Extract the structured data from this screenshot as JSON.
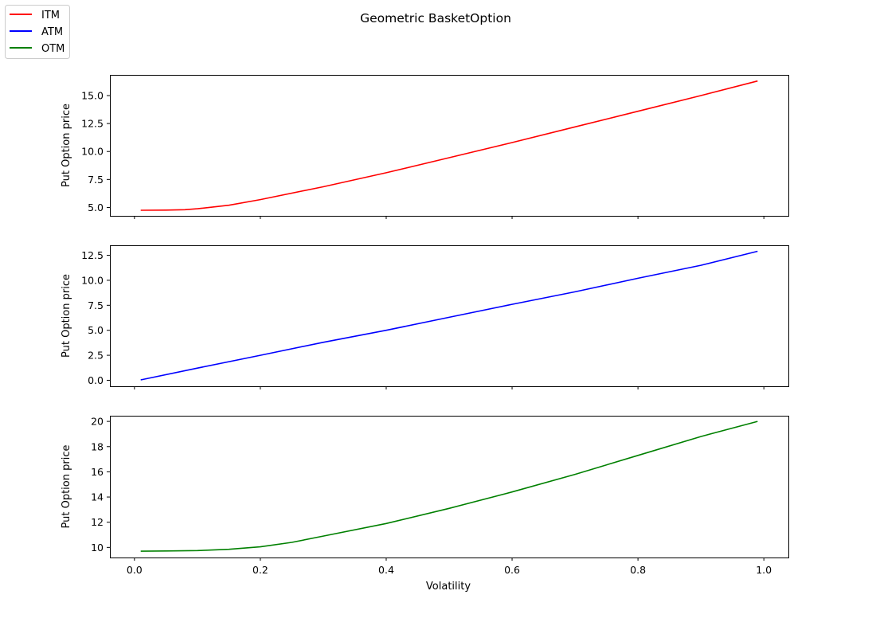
{
  "title": "Geometric BasketOption",
  "legend": {
    "placement": "top-left",
    "entries": [
      {
        "label": "ITM",
        "color": "#ff0000"
      },
      {
        "label": "ATM",
        "color": "#0000ff"
      },
      {
        "label": "OTM",
        "color": "#008000"
      }
    ]
  },
  "chart_data": [
    {
      "type": "line",
      "series": [
        {
          "name": "ITM",
          "color": "#ff0000",
          "x": [
            0.01,
            0.05,
            0.08,
            0.1,
            0.15,
            0.2,
            0.3,
            0.4,
            0.5,
            0.6,
            0.7,
            0.8,
            0.9,
            0.99
          ],
          "y": [
            4.75,
            4.76,
            4.8,
            4.88,
            5.2,
            5.7,
            6.85,
            8.1,
            9.45,
            10.8,
            12.2,
            13.6,
            15.0,
            16.3
          ]
        }
      ],
      "xlabel": "",
      "ylabel": "Put Option price",
      "xlim": [
        -0.039,
        1.039
      ],
      "ylim": [
        4.25,
        16.85
      ],
      "xticks": [
        0.0,
        0.2,
        0.4,
        0.6,
        0.8,
        1.0
      ],
      "xtick_labels_visible": false,
      "yticks": [
        5.0,
        7.5,
        10.0,
        12.5,
        15.0
      ],
      "ytick_labels": [
        "5.0",
        "7.5",
        "10.0",
        "12.5",
        "15.0"
      ],
      "grid": false
    },
    {
      "type": "line",
      "series": [
        {
          "name": "ATM",
          "color": "#0000ff",
          "x": [
            0.01,
            0.1,
            0.2,
            0.3,
            0.4,
            0.5,
            0.6,
            0.7,
            0.8,
            0.9,
            0.99
          ],
          "y": [
            0.04,
            1.22,
            2.5,
            3.8,
            5.0,
            6.3,
            7.6,
            8.85,
            10.2,
            11.5,
            12.9
          ]
        }
      ],
      "xlabel": "",
      "ylabel": "Put Option price",
      "xlim": [
        -0.039,
        1.039
      ],
      "ylim": [
        -0.6,
        13.5
      ],
      "xticks": [
        0.0,
        0.2,
        0.4,
        0.6,
        0.8,
        1.0
      ],
      "xtick_labels_visible": false,
      "yticks": [
        0.0,
        2.5,
        5.0,
        7.5,
        10.0,
        12.5
      ],
      "ytick_labels": [
        "0.0",
        "2.5",
        "5.0",
        "7.5",
        "10.0",
        "12.5"
      ],
      "grid": false
    },
    {
      "type": "line",
      "series": [
        {
          "name": "OTM",
          "color": "#008000",
          "x": [
            0.01,
            0.05,
            0.1,
            0.15,
            0.2,
            0.25,
            0.3,
            0.4,
            0.5,
            0.6,
            0.7,
            0.8,
            0.9,
            0.99
          ],
          "y": [
            9.7,
            9.72,
            9.75,
            9.85,
            10.05,
            10.4,
            10.9,
            11.9,
            13.1,
            14.4,
            15.8,
            17.3,
            18.8,
            20.0
          ]
        }
      ],
      "xlabel": "Volatility",
      "ylabel": "Put Option price",
      "xlim": [
        -0.039,
        1.039
      ],
      "ylim": [
        9.2,
        20.45
      ],
      "xticks": [
        0.0,
        0.2,
        0.4,
        0.6,
        0.8,
        1.0
      ],
      "xtick_labels": [
        "0.0",
        "0.2",
        "0.4",
        "0.6",
        "0.8",
        "1.0"
      ],
      "yticks": [
        10,
        12,
        14,
        16,
        18,
        20
      ],
      "ytick_labels": [
        "10",
        "12",
        "14",
        "16",
        "18",
        "20"
      ],
      "grid": false
    }
  ]
}
